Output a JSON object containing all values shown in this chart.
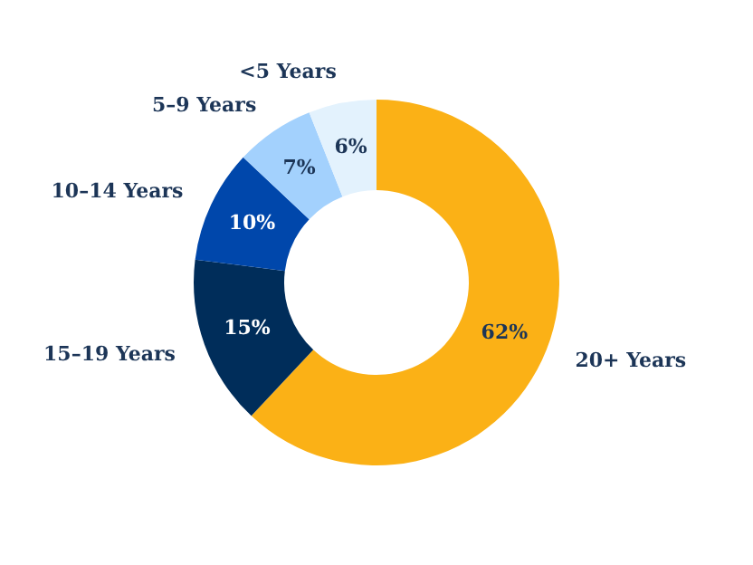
{
  "chart_data": {
    "type": "donut",
    "categories": [
      "20+ Years",
      "15–19 Years",
      "10–14 Years",
      "5–9 Years",
      "<5 Years"
    ],
    "values": [
      62,
      15,
      10,
      7,
      6
    ],
    "colors": [
      "#fbb116",
      "#002d5a",
      "#0047ab",
      "#a3d1fd",
      "#e3f2fd"
    ],
    "value_labels": [
      "62%",
      "15%",
      "10%",
      "7%",
      "6%"
    ]
  }
}
